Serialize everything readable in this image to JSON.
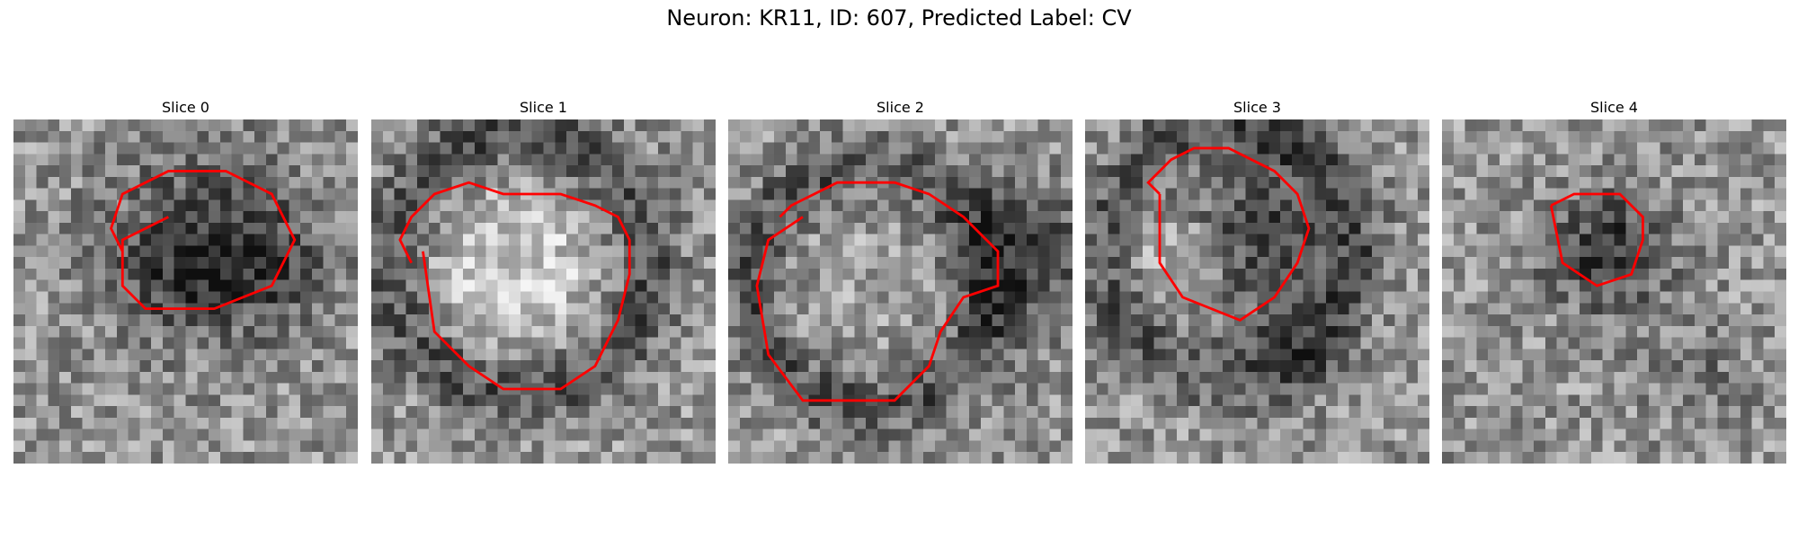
{
  "figure": {
    "title": "Neuron: KR11, ID: 607, Predicted Label: CV",
    "panels": [
      {
        "title": "Slice 0",
        "contour": [
          [
            13.5,
            8.5
          ],
          [
            9.5,
            10.5
          ],
          [
            9.5,
            14.5
          ],
          [
            11.5,
            16.5
          ],
          [
            17.5,
            16.5
          ],
          [
            22.5,
            14.5
          ],
          [
            24.5,
            10.5
          ],
          [
            22.5,
            6.5
          ],
          [
            18.5,
            4.5
          ],
          [
            13.5,
            4.5
          ],
          [
            9.5,
            6.5
          ],
          [
            8.5,
            9.5
          ],
          [
            9.5,
            11.5
          ]
        ]
      },
      {
        "title": "Slice 1",
        "contour": [
          [
            4.5,
            11.5
          ],
          [
            5.5,
            18.5
          ],
          [
            8.5,
            21.5
          ],
          [
            11.5,
            23.5
          ],
          [
            16.5,
            23.5
          ],
          [
            19.5,
            21.5
          ],
          [
            21.5,
            17.5
          ],
          [
            22.5,
            13.5
          ],
          [
            22.5,
            10.5
          ],
          [
            21.5,
            8.5
          ],
          [
            19.5,
            7.5
          ],
          [
            16.5,
            6.5
          ],
          [
            11.5,
            6.5
          ],
          [
            8.5,
            5.5
          ],
          [
            5.5,
            6.5
          ],
          [
            3.5,
            8.5
          ],
          [
            2.5,
            10.5
          ],
          [
            3.5,
            12.5
          ]
        ]
      },
      {
        "title": "Slice 2",
        "contour": [
          [
            6.5,
            8.5
          ],
          [
            3.5,
            10.5
          ],
          [
            2.5,
            14.5
          ],
          [
            3.5,
            20.5
          ],
          [
            6.5,
            24.5
          ],
          [
            14.5,
            24.5
          ],
          [
            17.5,
            21.5
          ],
          [
            18.5,
            18.5
          ],
          [
            20.5,
            15.5
          ],
          [
            23.5,
            14.5
          ],
          [
            23.5,
            11.5
          ],
          [
            20.5,
            8.5
          ],
          [
            17.5,
            6.5
          ],
          [
            14.5,
            5.5
          ],
          [
            9.5,
            5.5
          ],
          [
            7.5,
            6.5
          ],
          [
            5.5,
            7.5
          ],
          [
            4.5,
            8.5
          ]
        ]
      },
      {
        "title": "Slice 3",
        "contour": [
          [
            6.5,
            6.5
          ],
          [
            6.5,
            12.5
          ],
          [
            8.5,
            15.5
          ],
          [
            13.5,
            17.5
          ],
          [
            16.5,
            15.5
          ],
          [
            18.5,
            12.5
          ],
          [
            19.5,
            9.5
          ],
          [
            18.5,
            6.5
          ],
          [
            16.5,
            4.5
          ],
          [
            12.5,
            2.5
          ],
          [
            9.5,
            2.5
          ],
          [
            7.5,
            3.5
          ],
          [
            6.5,
            4.5
          ],
          [
            5.5,
            5.5
          ],
          [
            6.5,
            6.5
          ]
        ]
      },
      {
        "title": "Slice 4",
        "contour": [
          [
            9.5,
            7.5
          ],
          [
            10.5,
            12.5
          ],
          [
            13.5,
            14.5
          ],
          [
            16.5,
            13.5
          ],
          [
            17.5,
            10.5
          ],
          [
            17.5,
            8.5
          ],
          [
            15.5,
            6.5
          ],
          [
            11.5,
            6.5
          ],
          [
            9.5,
            7.5
          ]
        ]
      }
    ]
  },
  "colors": {
    "contour": "#ff0000"
  }
}
